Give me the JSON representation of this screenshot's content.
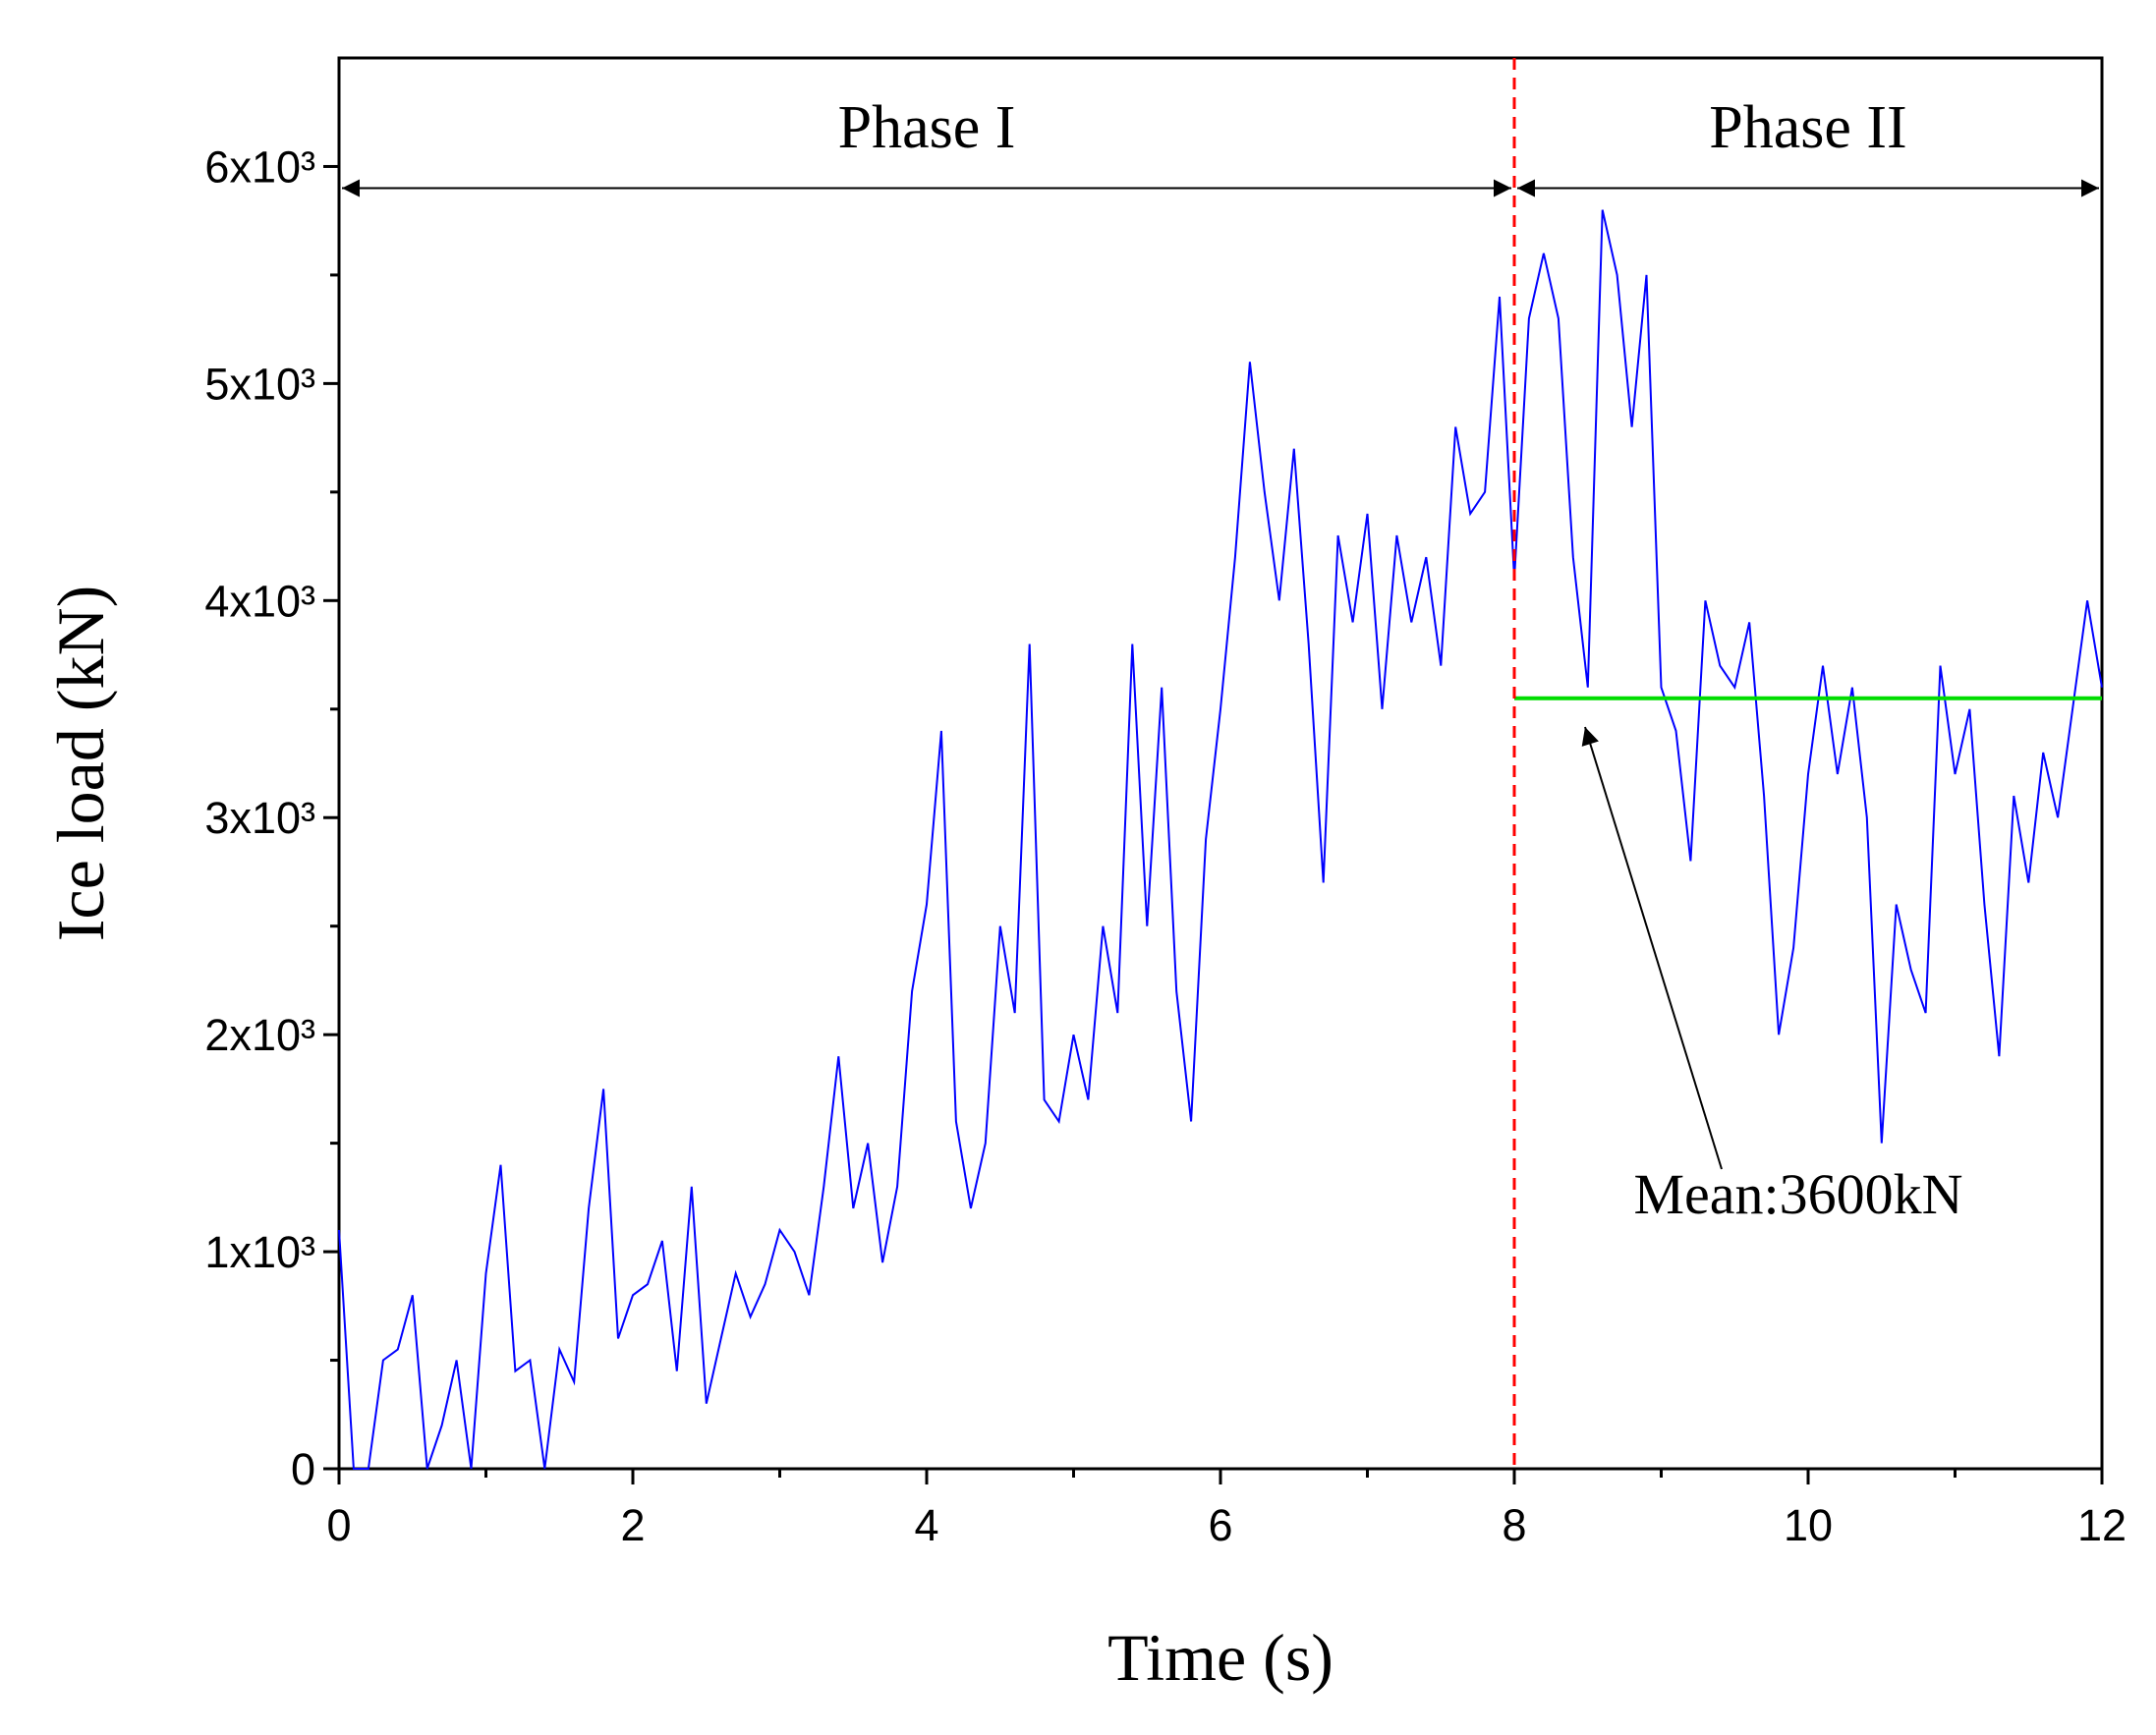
{
  "chart_data": {
    "type": "line",
    "xlabel": "Time (s)",
    "ylabel": "Ice load (kN)",
    "xlim": [
      0,
      12
    ],
    "ylim": [
      0,
      6500
    ],
    "xticks": [
      0,
      2,
      4,
      6,
      8,
      10,
      12
    ],
    "xminorticks": [
      1,
      3,
      5,
      7,
      9,
      11
    ],
    "yticks": [
      0,
      {
        "value": 1000,
        "label": "1x10³"
      },
      {
        "value": 2000,
        "label": "2x10³"
      },
      {
        "value": 3000,
        "label": "3x10³"
      },
      {
        "value": 4000,
        "label": "4x10³"
      },
      {
        "value": 5000,
        "label": "5x10³"
      },
      {
        "value": 6000,
        "label": "6x10³"
      }
    ],
    "yminorticks": [
      500,
      1500,
      2500,
      3500,
      4500,
      5500
    ],
    "x": [
      0,
      0.1,
      0.2,
      0.3,
      0.4,
      0.5,
      0.6,
      0.7,
      0.8,
      0.9,
      1,
      1.1,
      1.2,
      1.3,
      1.4,
      1.5,
      1.6,
      1.7,
      1.8,
      1.9,
      2,
      2.1,
      2.2,
      2.3,
      2.4,
      2.5,
      2.6,
      2.7,
      2.8,
      2.9,
      3,
      3.1,
      3.2,
      3.3,
      3.4,
      3.5,
      3.6,
      3.7,
      3.8,
      3.9,
      4,
      4.1,
      4.2,
      4.3,
      4.4,
      4.5,
      4.6,
      4.7,
      4.8,
      4.9,
      5,
      5.1,
      5.2,
      5.3,
      5.4,
      5.5,
      5.6,
      5.7,
      5.8,
      5.9,
      6,
      6.1,
      6.2,
      6.3,
      6.4,
      6.5,
      6.6,
      6.7,
      6.8,
      6.9,
      7,
      7.1,
      7.2,
      7.3,
      7.4,
      7.5,
      7.6,
      7.7,
      7.8,
      7.9,
      8,
      8.1,
      8.2,
      8.3,
      8.4,
      8.5,
      8.6,
      8.7,
      8.8,
      8.9,
      9,
      9.1,
      9.2,
      9.3,
      9.4,
      9.5,
      9.6,
      9.7,
      9.8,
      9.9,
      10,
      10.1,
      10.2,
      10.3,
      10.4,
      10.5,
      10.6,
      10.7,
      10.8,
      10.9,
      11,
      11.1,
      11.2,
      11.3,
      11.4,
      11.5,
      11.6,
      11.7,
      11.8,
      11.9,
      12
    ],
    "series": [
      {
        "color": "#0000ff",
        "values": [
          1100,
          0,
          0,
          500,
          550,
          800,
          0,
          200,
          500,
          0,
          900,
          1400,
          450,
          500,
          0,
          550,
          400,
          1200,
          1750,
          600,
          800,
          850,
          1050,
          450,
          1300,
          300,
          600,
          900,
          700,
          850,
          1100,
          1000,
          800,
          1300,
          1900,
          1200,
          1500,
          950,
          1300,
          2200,
          2600,
          3400,
          1600,
          1200,
          1500,
          2500,
          2100,
          3800,
          1700,
          1600,
          2000,
          1700,
          2500,
          2100,
          3800,
          2500,
          3600,
          2200,
          1600,
          2900,
          3500,
          4200,
          5100,
          4500,
          4000,
          4700,
          3800,
          2700,
          4300,
          3900,
          4400,
          3500,
          4300,
          3900,
          4200,
          3700,
          4800,
          4400,
          4500,
          5400,
          4100,
          5300,
          5600,
          5300,
          4200,
          3600,
          5800,
          5500,
          4800,
          5500,
          3600,
          3400,
          2800,
          4000,
          3700,
          3600,
          3900,
          3100,
          2000,
          2400,
          3200,
          3700,
          3200,
          3600,
          3000,
          1500,
          2600,
          2300,
          2100,
          3700,
          3200,
          3500,
          2600,
          1900,
          3100,
          2700,
          3300,
          3000,
          3500,
          4000,
          3600
        ]
      }
    ],
    "divider": {
      "x": 8,
      "color": "#ff0000"
    },
    "mean_line": {
      "value": 3550,
      "start": 8,
      "end": 12,
      "color": "#00dd00"
    },
    "phases": [
      {
        "label": "Phase I",
        "start": 0,
        "end": 8
      },
      {
        "label": "Phase II",
        "start": 8,
        "end": 12
      }
    ],
    "phase_arrow_y": 5900,
    "annotation": "Mean:3600kN"
  }
}
